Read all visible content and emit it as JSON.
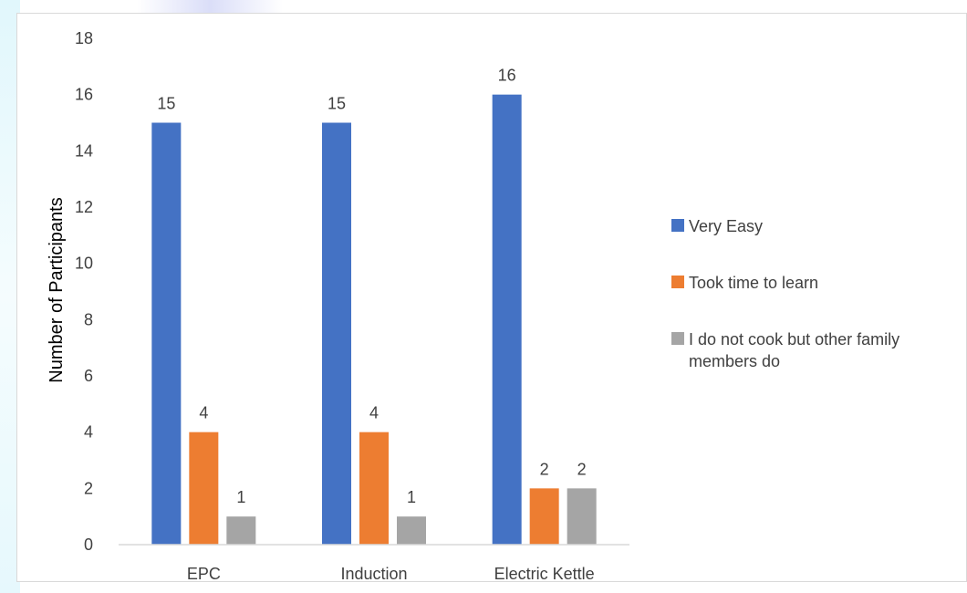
{
  "chart_data": {
    "type": "bar",
    "title": "",
    "xlabel": "",
    "ylabel": "Number of Participants",
    "ylim": [
      0,
      18
    ],
    "yticks": [
      0,
      2,
      4,
      6,
      8,
      10,
      12,
      14,
      16,
      18
    ],
    "grid": false,
    "legend_position": "right",
    "categories": [
      "EPC",
      "Induction",
      "Electric Kettle"
    ],
    "series": [
      {
        "name": "Very Easy",
        "color": "#4472C4",
        "values": [
          15,
          15,
          16
        ]
      },
      {
        "name": "Took time to learn",
        "color": "#ED7D31",
        "values": [
          4,
          4,
          2
        ]
      },
      {
        "name": "I do not cook but other family members do",
        "color": "#A5A5A5",
        "values": [
          1,
          1,
          2
        ]
      }
    ],
    "data_labels": true
  }
}
